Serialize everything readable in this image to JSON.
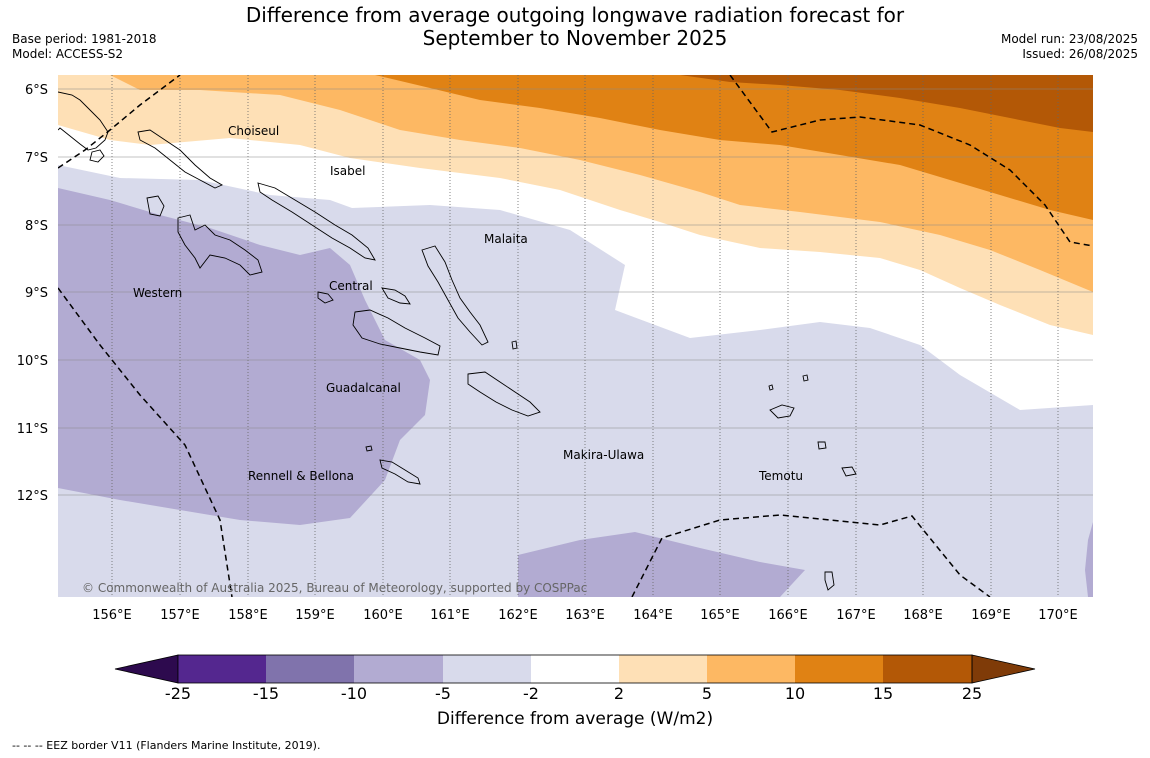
{
  "title": {
    "line1": "Difference from average outgoing longwave radiation forecast for",
    "line2": "September to November 2025"
  },
  "meta_left": {
    "base_period": "Base period: 1981-2018",
    "model": "Model: ACCESS-S2"
  },
  "meta_right": {
    "model_run": "Model run: 23/08/2025",
    "issued": "Issued: 26/08/2025"
  },
  "map": {
    "lat_ticks": [
      "6°S",
      "7°S",
      "8°S",
      "9°S",
      "10°S",
      "11°S",
      "12°S"
    ],
    "lon_ticks": [
      "156°E",
      "157°E",
      "158°E",
      "159°E",
      "160°E",
      "161°E",
      "162°E",
      "163°E",
      "164°E",
      "165°E",
      "166°E",
      "167°E",
      "168°E",
      "169°E",
      "170°E"
    ],
    "province_labels": [
      {
        "name": "Choiseul"
      },
      {
        "name": "Isabel"
      },
      {
        "name": "Malaita"
      },
      {
        "name": "Western"
      },
      {
        "name": "Central"
      },
      {
        "name": "Guadalcanal"
      },
      {
        "name": "Rennell & Bellona"
      },
      {
        "name": "Makira-Ulawa"
      },
      {
        "name": "Temotu"
      }
    ],
    "copyright": "© Commonwealth of Australia 2025, Bureau of Meteorology, supported by COSPPac"
  },
  "colorbar": {
    "label": "Difference from average (W/m2)",
    "ticks": [
      "-25",
      "-15",
      "-10",
      "-5",
      "-2",
      "2",
      "5",
      "10",
      "15",
      "25"
    ],
    "colors": [
      "#2d0a4e",
      "#54278f",
      "#8073ac",
      "#b2abd2",
      "#d8daeb",
      "#ffffff",
      "#fee0b6",
      "#fdb863",
      "#e08214",
      "#b35806",
      "#7f3b08"
    ]
  },
  "footnote": "--  --  -- EEZ border V11 (Flanders Marine Institute, 2019)."
}
